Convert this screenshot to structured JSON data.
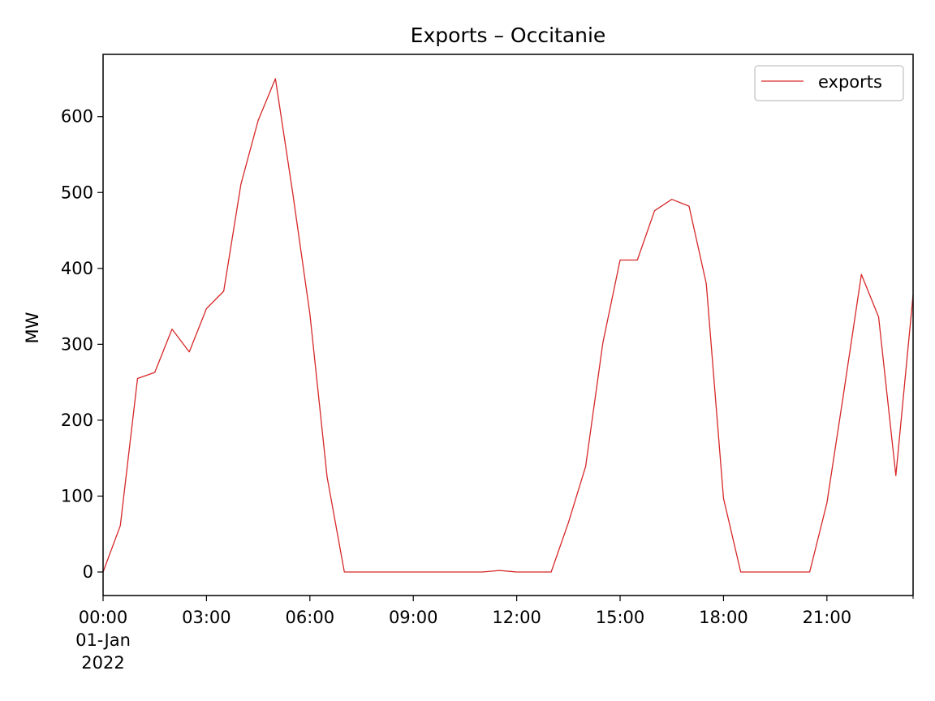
{
  "chart_data": {
    "type": "line",
    "title": "Exports – Occitanie",
    "xlabel": "",
    "ylabel": "MW",
    "x_tick_labels": [
      "00:00\n01-Jan\n2022",
      "03:00",
      "06:00",
      "09:00",
      "12:00",
      "15:00",
      "18:00",
      "21:00"
    ],
    "x_tick_values": [
      "2022-01-01 00:00",
      "2022-01-01 03:00",
      "2022-01-01 06:00",
      "2022-01-01 09:00",
      "2022-01-01 12:00",
      "2022-01-01 15:00",
      "2022-01-01 18:00",
      "2022-01-01 21:00"
    ],
    "xlim": [
      "2022-01-01 00:00",
      "2022-01-01 23:30"
    ],
    "ylim": [
      -31,
      682
    ],
    "y_ticks": [
      0,
      100,
      200,
      300,
      400,
      500,
      600
    ],
    "grid": false,
    "legend_position": "top-right",
    "series": [
      {
        "name": "exports",
        "color": "#d62728",
        "x": [
          "2022-01-01 00:00",
          "2022-01-01 00:30",
          "2022-01-01 01:00",
          "2022-01-01 01:30",
          "2022-01-01 02:00",
          "2022-01-01 02:30",
          "2022-01-01 03:00",
          "2022-01-01 03:30",
          "2022-01-01 04:00",
          "2022-01-01 04:30",
          "2022-01-01 05:00",
          "2022-01-01 05:30",
          "2022-01-01 06:00",
          "2022-01-01 06:30",
          "2022-01-01 07:00",
          "2022-01-01 07:30",
          "2022-01-01 08:00",
          "2022-01-01 08:30",
          "2022-01-01 09:00",
          "2022-01-01 09:30",
          "2022-01-01 10:00",
          "2022-01-01 10:30",
          "2022-01-01 11:00",
          "2022-01-01 11:30",
          "2022-01-01 12:00",
          "2022-01-01 12:30",
          "2022-01-01 13:00",
          "2022-01-01 13:30",
          "2022-01-01 14:00",
          "2022-01-01 14:30",
          "2022-01-01 15:00",
          "2022-01-01 15:30",
          "2022-01-01 16:00",
          "2022-01-01 16:30",
          "2022-01-01 17:00",
          "2022-01-01 17:30",
          "2022-01-01 18:00",
          "2022-01-01 18:30",
          "2022-01-01 19:00",
          "2022-01-01 19:30",
          "2022-01-01 20:00",
          "2022-01-01 20:30",
          "2022-01-01 21:00",
          "2022-01-01 21:30",
          "2022-01-01 22:00",
          "2022-01-01 22:30",
          "2022-01-01 23:00",
          "2022-01-01 23:30"
        ],
        "y": [
          0,
          61,
          255,
          263,
          320,
          290,
          347,
          370,
          511,
          595,
          650,
          500,
          340,
          125,
          0,
          0,
          0,
          0,
          0,
          0,
          0,
          0,
          0,
          2,
          0,
          0,
          0,
          65,
          139,
          302,
          411,
          411,
          476,
          491,
          482,
          380,
          97,
          0,
          0,
          0,
          0,
          0,
          91,
          240,
          392,
          336,
          127,
          365
        ]
      }
    ]
  }
}
